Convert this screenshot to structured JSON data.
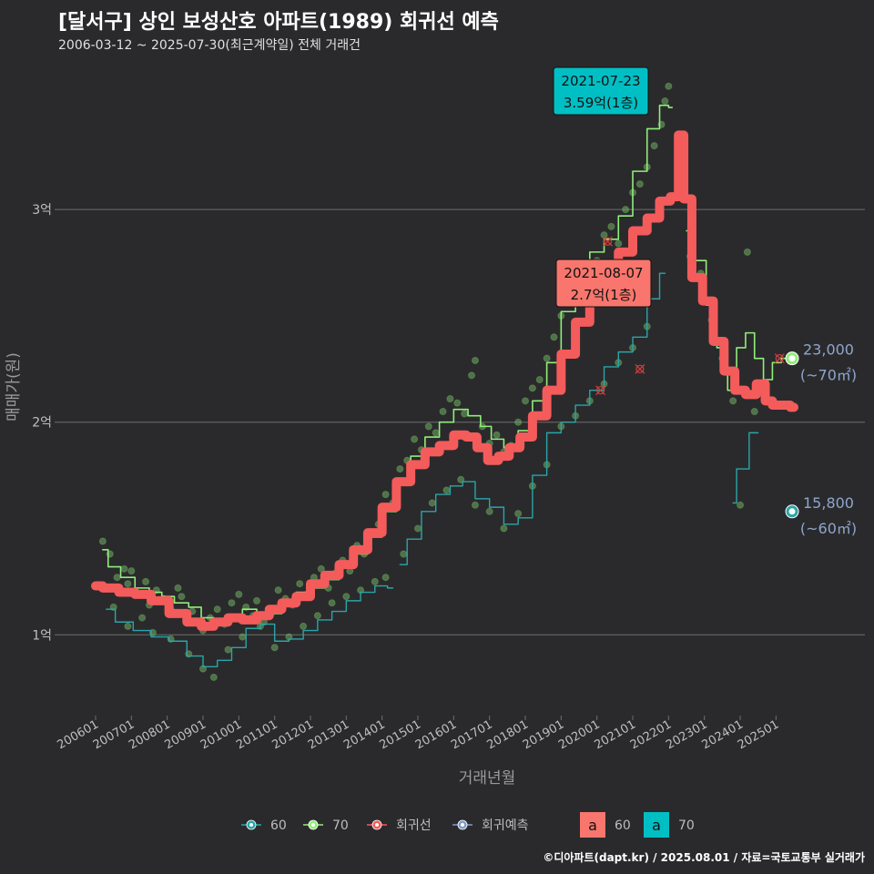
{
  "title": "[달서구] 상인 보성산호 아파트(1989) 회귀선 예측",
  "subtitle": "2006-03-12 ~ 2025-07-30(최근계약일) 전체 거래건",
  "credit": "©디아파트(dapt.kr) / 2025.08.01 / 자료=국토교통부 실거래가",
  "colors": {
    "s60": "#2aa5a8",
    "s70": "#90ee7a",
    "regression": "#f45b5b",
    "forecast": "#7f9cc8",
    "label_bg_60": "#f8766d",
    "label_bg_70": "#00bfc4",
    "grid": "#6e6e6e",
    "axis_text": "#bfbfbf",
    "annot_text": "#8ea6cc"
  },
  "chart_data": {
    "type": "line",
    "xlabel": "거래년월",
    "ylabel": "매매가(원)",
    "x_range": [
      2006.0,
      2025.83
    ],
    "ylim": [
      0.62,
      3.72
    ],
    "x_ticks": [
      {
        "label": "200601",
        "v": 2006.0
      },
      {
        "label": "200701",
        "v": 2007.0
      },
      {
        "label": "200801",
        "v": 2008.0
      },
      {
        "label": "200901",
        "v": 2009.0
      },
      {
        "label": "201001",
        "v": 2010.0
      },
      {
        "label": "201101",
        "v": 2011.0
      },
      {
        "label": "201201",
        "v": 2012.0
      },
      {
        "label": "201301",
        "v": 2013.0
      },
      {
        "label": "201401",
        "v": 2014.0
      },
      {
        "label": "201501",
        "v": 2015.0
      },
      {
        "label": "201601",
        "v": 2016.0
      },
      {
        "label": "201701",
        "v": 2017.0
      },
      {
        "label": "201801",
        "v": 2018.0
      },
      {
        "label": "201901",
        "v": 2019.0
      },
      {
        "label": "202001",
        "v": 2020.0
      },
      {
        "label": "202101",
        "v": 2021.0
      },
      {
        "label": "202201",
        "v": 2022.0
      },
      {
        "label": "202301",
        "v": 2023.0
      },
      {
        "label": "202401",
        "v": 2024.0
      },
      {
        "label": "202501",
        "v": 2025.0
      }
    ],
    "y_ticks": [
      {
        "label": "1억",
        "v": 1.0
      },
      {
        "label": "2억",
        "v": 2.0
      },
      {
        "label": "3억",
        "v": 3.0
      }
    ],
    "series": [
      {
        "name": "70",
        "points": [
          [
            2006.2,
            1.4
          ],
          [
            2006.5,
            1.32
          ],
          [
            2006.9,
            1.27
          ],
          [
            2007.3,
            1.22
          ],
          [
            2007.7,
            1.2
          ],
          [
            2008.0,
            1.18
          ],
          [
            2008.4,
            1.15
          ],
          [
            2008.8,
            1.13
          ],
          [
            2009.1,
            1.08
          ],
          [
            2009.5,
            1.06
          ],
          [
            2009.9,
            1.09
          ],
          [
            2010.3,
            1.12
          ],
          [
            2010.7,
            1.08
          ],
          [
            2011.0,
            1.1
          ],
          [
            2011.4,
            1.15
          ],
          [
            2011.8,
            1.2
          ],
          [
            2012.2,
            1.22
          ],
          [
            2012.6,
            1.26
          ],
          [
            2013.0,
            1.32
          ],
          [
            2013.4,
            1.38
          ],
          [
            2013.8,
            1.46
          ],
          [
            2014.2,
            1.58
          ],
          [
            2014.6,
            1.72
          ],
          [
            2015.0,
            1.84
          ],
          [
            2015.4,
            1.93
          ],
          [
            2015.8,
            2.0
          ],
          [
            2016.2,
            2.06
          ],
          [
            2016.6,
            2.03
          ],
          [
            2016.9,
            1.98
          ],
          [
            2017.2,
            1.92
          ],
          [
            2017.6,
            1.88
          ],
          [
            2018.0,
            1.96
          ],
          [
            2018.4,
            2.1
          ],
          [
            2018.8,
            2.28
          ],
          [
            2019.2,
            2.52
          ],
          [
            2019.6,
            2.68
          ],
          [
            2020.0,
            2.8
          ],
          [
            2020.4,
            2.86
          ],
          [
            2020.8,
            2.97
          ],
          [
            2021.2,
            3.18
          ],
          [
            2021.6,
            3.38
          ],
          [
            2021.9,
            3.49
          ],
          [
            2022.1,
            3.48
          ],
          [
            null,
            null
          ],
          [
            2022.5,
            2.9
          ],
          [
            2022.9,
            2.76
          ],
          [
            2023.2,
            2.55
          ],
          [
            2023.5,
            2.35
          ],
          [
            2023.8,
            2.15
          ],
          [
            2024.0,
            2.35
          ],
          [
            2024.3,
            2.42
          ],
          [
            2024.5,
            2.3
          ],
          [
            2024.8,
            2.2
          ],
          [
            2025.0,
            2.28
          ],
          [
            2025.3,
            2.3
          ]
        ]
      },
      {
        "name": "60",
        "points": [
          [
            2006.3,
            1.12
          ],
          [
            2006.8,
            1.06
          ],
          [
            2007.3,
            1.02
          ],
          [
            2007.8,
            0.99
          ],
          [
            2008.3,
            0.97
          ],
          [
            2008.8,
            0.9
          ],
          [
            2009.2,
            0.85
          ],
          [
            2009.6,
            0.88
          ],
          [
            2010.0,
            0.94
          ],
          [
            2010.4,
            1.03
          ],
          [
            2010.8,
            1.05
          ],
          [
            2011.2,
            0.97
          ],
          [
            2011.6,
            0.98
          ],
          [
            2012.0,
            1.02
          ],
          [
            2012.4,
            1.07
          ],
          [
            2012.8,
            1.11
          ],
          [
            2013.2,
            1.16
          ],
          [
            2013.6,
            1.2
          ],
          [
            2014.0,
            1.23
          ],
          [
            2014.3,
            1.22
          ],
          [
            null,
            null
          ],
          [
            2014.5,
            1.33
          ],
          [
            2014.9,
            1.45
          ],
          [
            2015.3,
            1.58
          ],
          [
            2015.7,
            1.66
          ],
          [
            2016.1,
            1.7
          ],
          [
            2016.4,
            1.72
          ],
          [
            2016.8,
            1.64
          ],
          [
            2017.2,
            1.6
          ],
          [
            2017.6,
            1.52
          ],
          [
            2018.0,
            1.55
          ],
          [
            2018.4,
            1.75
          ],
          [
            2018.8,
            1.95
          ],
          [
            2019.2,
            2.0
          ],
          [
            2019.6,
            2.08
          ],
          [
            2020.0,
            2.15
          ],
          [
            2020.4,
            2.26
          ],
          [
            2020.8,
            2.33
          ],
          [
            2021.2,
            2.4
          ],
          [
            2021.6,
            2.58
          ],
          [
            2021.9,
            2.7
          ],
          [
            null,
            null
          ],
          [
            2023.8,
            1.62
          ],
          [
            2024.0,
            1.78
          ],
          [
            2024.5,
            1.95
          ]
        ]
      },
      {
        "name": "회귀선",
        "points": [
          [
            2006.0,
            1.23
          ],
          [
            2006.4,
            1.22
          ],
          [
            2006.9,
            1.2
          ],
          [
            2007.3,
            1.19
          ],
          [
            2007.8,
            1.16
          ],
          [
            2008.3,
            1.1
          ],
          [
            2008.8,
            1.06
          ],
          [
            2009.1,
            1.04
          ],
          [
            2009.5,
            1.06
          ],
          [
            2009.9,
            1.08
          ],
          [
            2010.3,
            1.07
          ],
          [
            2010.7,
            1.09
          ],
          [
            2011.0,
            1.12
          ],
          [
            2011.4,
            1.15
          ],
          [
            2011.8,
            1.18
          ],
          [
            2012.2,
            1.24
          ],
          [
            2012.6,
            1.28
          ],
          [
            2013.0,
            1.33
          ],
          [
            2013.4,
            1.4
          ],
          [
            2013.8,
            1.48
          ],
          [
            2014.2,
            1.6
          ],
          [
            2014.6,
            1.72
          ],
          [
            2015.0,
            1.8
          ],
          [
            2015.4,
            1.86
          ],
          [
            2015.8,
            1.89
          ],
          [
            2016.2,
            1.94
          ],
          [
            2016.5,
            1.93
          ],
          [
            2016.8,
            1.88
          ],
          [
            2017.1,
            1.82
          ],
          [
            2017.4,
            1.84
          ],
          [
            2017.7,
            1.88
          ],
          [
            2018.0,
            1.93
          ],
          [
            2018.4,
            2.03
          ],
          [
            2018.8,
            2.15
          ],
          [
            2019.2,
            2.32
          ],
          [
            2019.6,
            2.47
          ],
          [
            2020.0,
            2.58
          ],
          [
            2020.4,
            2.68
          ],
          [
            2020.8,
            2.8
          ],
          [
            2021.2,
            2.9
          ],
          [
            2021.6,
            2.96
          ],
          [
            2021.9,
            3.04
          ],
          [
            2022.2,
            3.06
          ],
          [
            2022.35,
            3.35
          ],
          [
            2022.5,
            3.05
          ],
          [
            2022.8,
            2.68
          ],
          [
            2023.1,
            2.57
          ],
          [
            2023.4,
            2.38
          ],
          [
            2023.7,
            2.24
          ],
          [
            2024.0,
            2.15
          ],
          [
            2024.3,
            2.13
          ],
          [
            2024.6,
            2.18
          ],
          [
            2024.8,
            2.1
          ],
          [
            2025.0,
            2.08
          ],
          [
            2025.3,
            2.08
          ],
          [
            2025.5,
            2.07
          ]
        ]
      }
    ],
    "scatter": [
      [
        2006.2,
        1.44
      ],
      [
        2006.4,
        1.38
      ],
      [
        2006.6,
        1.27
      ],
      [
        2006.8,
        1.31
      ],
      [
        2006.9,
        1.24
      ],
      [
        2007.0,
        1.3
      ],
      [
        2007.2,
        1.19
      ],
      [
        2007.4,
        1.25
      ],
      [
        2007.5,
        1.14
      ],
      [
        2007.7,
        1.21
      ],
      [
        2007.9,
        1.17
      ],
      [
        2008.1,
        1.12
      ],
      [
        2008.3,
        1.22
      ],
      [
        2008.4,
        1.18
      ],
      [
        2008.5,
        1.09
      ],
      [
        2008.7,
        1.11
      ],
      [
        2008.9,
        1.05
      ],
      [
        2009.0,
        1.02
      ],
      [
        2009.2,
        1.08
      ],
      [
        2009.4,
        1.12
      ],
      [
        2009.6,
        1.05
      ],
      [
        2009.8,
        1.15
      ],
      [
        2010.0,
        1.19
      ],
      [
        2010.2,
        1.13
      ],
      [
        2010.4,
        1.09
      ],
      [
        2010.5,
        1.16
      ],
      [
        2010.7,
        1.06
      ],
      [
        2010.9,
        1.1
      ],
      [
        2011.1,
        1.21
      ],
      [
        2011.3,
        1.17
      ],
      [
        2011.5,
        1.14
      ],
      [
        2011.7,
        1.24
      ],
      [
        2011.9,
        1.19
      ],
      [
        2012.1,
        1.27
      ],
      [
        2012.3,
        1.31
      ],
      [
        2012.5,
        1.22
      ],
      [
        2012.7,
        1.29
      ],
      [
        2012.9,
        1.35
      ],
      [
        2013.1,
        1.3
      ],
      [
        2013.3,
        1.42
      ],
      [
        2013.5,
        1.38
      ],
      [
        2013.7,
        1.48
      ],
      [
        2013.9,
        1.52
      ],
      [
        2014.1,
        1.66
      ],
      [
        2014.3,
        1.62
      ],
      [
        2014.5,
        1.78
      ],
      [
        2014.7,
        1.82
      ],
      [
        2014.9,
        1.92
      ],
      [
        2015.1,
        1.87
      ],
      [
        2015.3,
        1.98
      ],
      [
        2015.5,
        1.95
      ],
      [
        2015.7,
        2.05
      ],
      [
        2015.9,
        2.11
      ],
      [
        2016.1,
        2.09
      ],
      [
        2016.3,
        2.04
      ],
      [
        2016.5,
        2.22
      ],
      [
        2016.6,
        2.29
      ],
      [
        2016.8,
        1.98
      ],
      [
        2017.0,
        1.9
      ],
      [
        2017.2,
        1.94
      ],
      [
        2017.4,
        1.86
      ],
      [
        2017.6,
        1.89
      ],
      [
        2017.8,
        2.0
      ],
      [
        2018.0,
        2.1
      ],
      [
        2018.2,
        2.16
      ],
      [
        2018.4,
        2.2
      ],
      [
        2018.6,
        2.3
      ],
      [
        2018.8,
        2.4
      ],
      [
        2019.0,
        2.5
      ],
      [
        2019.2,
        2.56
      ],
      [
        2019.4,
        2.64
      ],
      [
        2019.6,
        2.7
      ],
      [
        2019.8,
        2.6
      ],
      [
        2020.0,
        2.76
      ],
      [
        2020.2,
        2.88
      ],
      [
        2020.4,
        2.92
      ],
      [
        2020.6,
        2.84
      ],
      [
        2020.8,
        3.0
      ],
      [
        2021.0,
        3.08
      ],
      [
        2021.2,
        3.12
      ],
      [
        2021.4,
        3.2
      ],
      [
        2021.6,
        3.3
      ],
      [
        2021.8,
        3.4
      ],
      [
        2021.9,
        3.51
      ],
      [
        2022.0,
        3.58
      ],
      [
        2022.6,
        2.78
      ],
      [
        2022.9,
        2.7
      ],
      [
        2023.2,
        2.48
      ],
      [
        2023.5,
        2.3
      ],
      [
        2023.8,
        2.1
      ],
      [
        2024.2,
        2.8
      ],
      [
        2024.4,
        2.05
      ],
      [
        2006.5,
        1.13
      ],
      [
        2006.9,
        1.04
      ],
      [
        2007.3,
        1.08
      ],
      [
        2007.6,
        1.01
      ],
      [
        2008.1,
        0.98
      ],
      [
        2008.6,
        0.91
      ],
      [
        2009.0,
        0.84
      ],
      [
        2009.3,
        0.8
      ],
      [
        2009.7,
        0.93
      ],
      [
        2010.1,
        0.99
      ],
      [
        2010.6,
        1.04
      ],
      [
        2011.0,
        0.94
      ],
      [
        2011.4,
        0.99
      ],
      [
        2011.8,
        1.04
      ],
      [
        2012.2,
        1.09
      ],
      [
        2012.6,
        1.15
      ],
      [
        2013.0,
        1.18
      ],
      [
        2013.4,
        1.21
      ],
      [
        2013.8,
        1.25
      ],
      [
        2014.1,
        1.27
      ],
      [
        2014.6,
        1.38
      ],
      [
        2015.0,
        1.5
      ],
      [
        2015.4,
        1.62
      ],
      [
        2015.8,
        1.68
      ],
      [
        2016.2,
        1.73
      ],
      [
        2016.6,
        1.61
      ],
      [
        2017.0,
        1.58
      ],
      [
        2017.4,
        1.5
      ],
      [
        2017.8,
        1.57
      ],
      [
        2018.2,
        1.7
      ],
      [
        2018.6,
        1.8
      ],
      [
        2019.0,
        1.98
      ],
      [
        2019.4,
        2.03
      ],
      [
        2019.8,
        2.1
      ],
      [
        2020.2,
        2.18
      ],
      [
        2020.6,
        2.28
      ],
      [
        2021.0,
        2.35
      ],
      [
        2021.4,
        2.45
      ],
      [
        2024.0,
        1.61
      ]
    ],
    "cross_markers": [
      [
        2020.3,
        2.85
      ],
      [
        2020.1,
        2.15
      ],
      [
        2021.2,
        2.25
      ],
      [
        2025.1,
        2.3
      ]
    ],
    "forecast_points": [
      {
        "series": "70",
        "x": 2025.45,
        "y": 2.3
      },
      {
        "series": "60",
        "x": 2025.45,
        "y": 1.58
      }
    ],
    "callouts": [
      {
        "series": "70",
        "date": "2021-07-23",
        "value": "3.59억(1층)",
        "x": 2021.55,
        "y": 3.59
      },
      {
        "series": "60",
        "date": "2021-08-07",
        "value": "2.7억(1층)",
        "x": 2021.6,
        "y": 2.7
      }
    ],
    "end_labels": [
      {
        "series": "70",
        "price": "23,000",
        "area": "(~70㎡)",
        "y": 2.3
      },
      {
        "series": "60",
        "price": "15,800",
        "area": "(~60㎡)",
        "y": 1.58
      }
    ],
    "legend": {
      "items": [
        {
          "key": "s60",
          "label": "60"
        },
        {
          "key": "s70",
          "label": "70"
        },
        {
          "key": "regression",
          "label": "회귀선"
        },
        {
          "key": "forecast",
          "label": "회귀예측"
        }
      ],
      "label_items": [
        {
          "key": "label_bg_60",
          "glyph": "a",
          "label": "60"
        },
        {
          "key": "label_bg_70",
          "glyph": "a",
          "label": "70"
        }
      ]
    }
  }
}
